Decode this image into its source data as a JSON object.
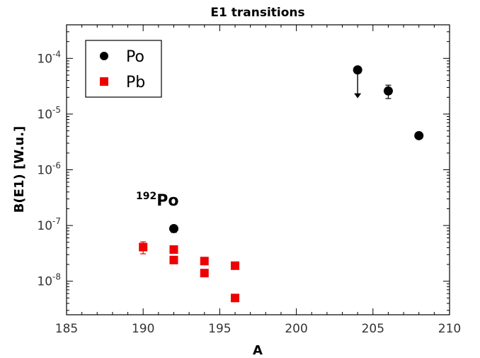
{
  "chart_data": {
    "type": "scatter",
    "title": "E1 transitions",
    "xlabel": "A",
    "ylabel": "B(E1) [W.u.]",
    "xlim": [
      185,
      210
    ],
    "ylim": [
      2.5e-09,
      0.0004
    ],
    "yscale": "log",
    "x_ticks": [
      "185",
      "190",
      "195",
      "200",
      "205",
      "210"
    ],
    "y_ticks": [
      {
        "base": "10",
        "exp": "-8",
        "value": 1e-08
      },
      {
        "base": "10",
        "exp": "-7",
        "value": 1e-07
      },
      {
        "base": "10",
        "exp": "-6",
        "value": 1e-06
      },
      {
        "base": "10",
        "exp": "-5",
        "value": 1e-05
      },
      {
        "base": "10",
        "exp": "-4",
        "value": 0.0001
      }
    ],
    "grid": false,
    "legend_position": "top-left",
    "series": [
      {
        "name": "Po",
        "marker": "circle",
        "color": "#000000",
        "points": [
          {
            "x": 192,
            "y": 8.8e-08,
            "err_lo": 7.5e-08,
            "err_hi": 1e-07
          },
          {
            "x": 204,
            "y": 6.2e-05,
            "upper_limit": true
          },
          {
            "x": 206,
            "y": 2.6e-05,
            "err_lo": 1.9e-05,
            "err_hi": 3.3e-05
          },
          {
            "x": 208,
            "y": 4.1e-06
          }
        ]
      },
      {
        "name": "Pb",
        "marker": "square",
        "color": "#ee0000",
        "points": [
          {
            "x": 190,
            "y": 4.1e-08,
            "err_lo": 3.1e-08,
            "err_hi": 5.1e-08
          },
          {
            "x": 192,
            "y": 3.7e-08
          },
          {
            "x": 192,
            "y": 2.4e-08
          },
          {
            "x": 194,
            "y": 2.3e-08
          },
          {
            "x": 194,
            "y": 1.4e-08
          },
          {
            "x": 196,
            "y": 1.9e-08
          },
          {
            "x": 196,
            "y": 5e-09
          }
        ]
      }
    ],
    "annotations": [
      {
        "sup": "192",
        "text": "Po"
      }
    ]
  }
}
